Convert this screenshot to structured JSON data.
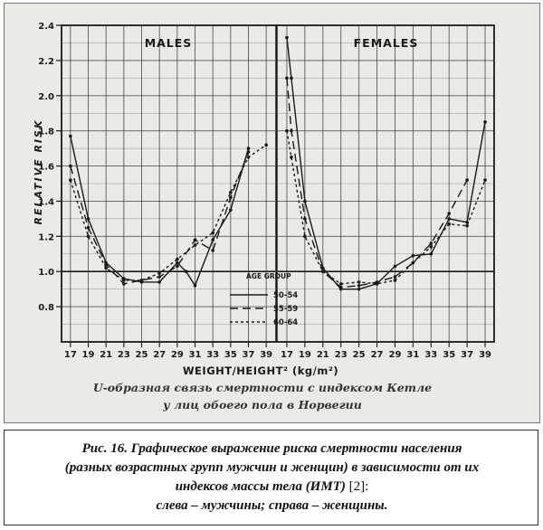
{
  "chart_data": {
    "type": "line",
    "panels": [
      {
        "title": "MALES",
        "series": [
          {
            "name": "50-54",
            "dash": "solid",
            "x": [
              17,
              19,
              21,
              23,
              25,
              27,
              29,
              30,
              31,
              33,
              35,
              37
            ],
            "y": [
              1.77,
              1.3,
              1.05,
              0.96,
              0.94,
              0.94,
              1.05,
              1.0,
              0.92,
              1.18,
              1.35,
              1.7
            ]
          },
          {
            "name": "55-59",
            "dash": "long-dash",
            "x": [
              17,
              19,
              21,
              23,
              25,
              27,
              29,
              31,
              33,
              35,
              37
            ],
            "y": [
              1.6,
              1.25,
              1.04,
              0.93,
              0.95,
              0.97,
              1.03,
              1.18,
              1.12,
              1.42,
              1.68
            ]
          },
          {
            "name": "60-64",
            "dash": "short-dash",
            "x": [
              17,
              19,
              21,
              23,
              25,
              27,
              29,
              31,
              33,
              35,
              37,
              39
            ],
            "y": [
              1.52,
              1.2,
              1.02,
              0.95,
              0.95,
              0.99,
              1.07,
              1.15,
              1.22,
              1.45,
              1.65,
              1.72
            ]
          }
        ]
      },
      {
        "title": "FEMALES",
        "series": [
          {
            "name": "50-54",
            "dash": "solid",
            "x": [
              17,
              17.5,
              19,
              21,
              23,
              25,
              27,
              29,
              31,
              33,
              35,
              37,
              39
            ],
            "y": [
              2.33,
              2.1,
              1.4,
              1.02,
              0.9,
              0.9,
              0.93,
              1.03,
              1.09,
              1.1,
              1.3,
              1.28,
              1.85
            ]
          },
          {
            "name": "55-59",
            "dash": "long-dash",
            "x": [
              17,
              17.5,
              19,
              21,
              23,
              25,
              27,
              29,
              31,
              33,
              35,
              37
            ],
            "y": [
              2.1,
              1.8,
              1.3,
              1.0,
              0.91,
              0.92,
              0.94,
              0.97,
              1.05,
              1.16,
              1.33,
              1.52
            ]
          },
          {
            "name": "60-64",
            "dash": "short-dash",
            "x": [
              17,
              17.5,
              19,
              21,
              23,
              25,
              27,
              29,
              31,
              33,
              35,
              37,
              39
            ],
            "y": [
              1.8,
              1.65,
              1.2,
              1.0,
              0.93,
              0.94,
              0.93,
              0.95,
              1.05,
              1.14,
              1.27,
              1.26,
              1.52
            ]
          }
        ]
      }
    ],
    "ylabel": "RELATIVE RISK",
    "xlabel": "WEIGHT/HEIGHT² (kg/m²)",
    "ylim": [
      0.6,
      2.4
    ],
    "yticks": [
      "2.4",
      "2.2",
      "2.0",
      "1.8",
      "1.6",
      "1.4",
      "1.2",
      "1.0",
      "0.8"
    ],
    "xticks": [
      "17",
      "19",
      "21",
      "23",
      "25",
      "27",
      "29",
      "31",
      "33",
      "35",
      "37",
      "39"
    ],
    "xlim": [
      16,
      40
    ],
    "legend": {
      "title": "AGE GROUP",
      "entries": [
        "50-54",
        "55-59",
        "60-64"
      ],
      "placement": "bottom-right of left panel"
    },
    "grid": true,
    "reference_line": 1.0
  },
  "photo_caption": {
    "line1": "U-образная связь смертности с индексом Кетле",
    "line2": "у лиц обоего пола в Норвегии"
  },
  "caption": {
    "line1": "Рис. 16. Графическое выражение риска смертности населения",
    "line2": "(разных возрастных групп мужчин и женщин) в зависимости от их",
    "line3_italic": "индексов массы тела (ИМТ)",
    "line3_ref": " [2]:",
    "line4": "слева – мужчины; справа – женщины."
  },
  "colors": {
    "background": "#e9ebe6",
    "ink": "#1a1a1a",
    "grid": "#2a2a2a"
  }
}
